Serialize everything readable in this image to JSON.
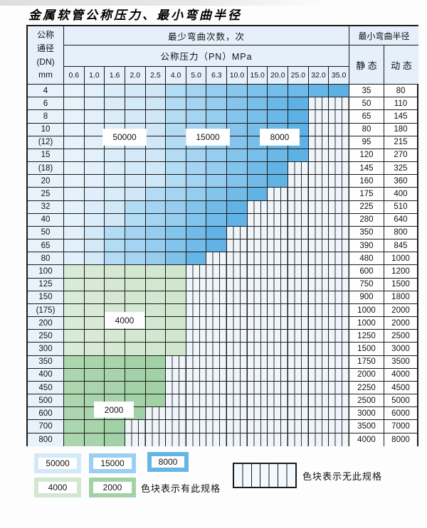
{
  "page": {
    "title": "金属软管公称压力、最小弯曲半径"
  },
  "table": {
    "corner": {
      "line1": "公称",
      "line2": "通径",
      "line3": "(DN)",
      "line4": "mm"
    },
    "bend_times_header": "最少弯曲次数，次",
    "pressure_header": "公称压力（PN）MPa",
    "radius_header": "最小弯曲半径",
    "static_header": "静 态",
    "dynamic_header": "动 态",
    "pressure_columns": [
      "0.6",
      "1.0",
      "1.6",
      "2.0",
      "2.5",
      "4.0",
      "5.0",
      "6.3",
      "10.0",
      "15.0",
      "20.0",
      "25.0",
      "32.0",
      "35.0"
    ],
    "rows": [
      {
        "dn": "4",
        "static": "35",
        "dynamic": "80",
        "segments": [
          {
            "cycles": "50000",
            "from": 0,
            "to": 4
          },
          {
            "cycles": "15000",
            "from": 5,
            "to": 7
          },
          {
            "cycles": "8000",
            "from": 8,
            "to": 13
          }
        ]
      },
      {
        "dn": "6",
        "static": "50",
        "dynamic": "110",
        "segments": [
          {
            "cycles": "50000",
            "from": 0,
            "to": 4
          },
          {
            "cycles": "15000",
            "from": 5,
            "to": 7
          },
          {
            "cycles": "8000",
            "from": 8,
            "to": 11
          }
        ]
      },
      {
        "dn": "8",
        "static": "65",
        "dynamic": "145",
        "segments": [
          {
            "cycles": "50000",
            "from": 0,
            "to": 4
          },
          {
            "cycles": "15000",
            "from": 5,
            "to": 7
          },
          {
            "cycles": "8000",
            "from": 8,
            "to": 11
          }
        ]
      },
      {
        "dn": "10",
        "static": "80",
        "dynamic": "180",
        "segments": [
          {
            "cycles": "50000",
            "from": 0,
            "to": 4
          },
          {
            "cycles": "15000",
            "from": 5,
            "to": 7
          },
          {
            "cycles": "8000",
            "from": 8,
            "to": 11
          }
        ]
      },
      {
        "dn": "(12)",
        "static": "95",
        "dynamic": "215",
        "segments": [
          {
            "cycles": "50000",
            "from": 0,
            "to": 4
          },
          {
            "cycles": "15000",
            "from": 5,
            "to": 7
          },
          {
            "cycles": "8000",
            "from": 8,
            "to": 11
          }
        ]
      },
      {
        "dn": "15",
        "static": "120",
        "dynamic": "270",
        "segments": [
          {
            "cycles": "50000",
            "from": 0,
            "to": 4
          },
          {
            "cycles": "15000",
            "from": 5,
            "to": 7
          },
          {
            "cycles": "8000",
            "from": 8,
            "to": 11
          }
        ]
      },
      {
        "dn": "(18)",
        "static": "145",
        "dynamic": "325",
        "segments": [
          {
            "cycles": "50000",
            "from": 0,
            "to": 4
          },
          {
            "cycles": "15000",
            "from": 5,
            "to": 7
          },
          {
            "cycles": "8000",
            "from": 8,
            "to": 10
          }
        ]
      },
      {
        "dn": "20",
        "static": "160",
        "dynamic": "360",
        "segments": [
          {
            "cycles": "50000",
            "from": 0,
            "to": 4
          },
          {
            "cycles": "15000",
            "from": 5,
            "to": 7
          },
          {
            "cycles": "8000",
            "from": 8,
            "to": 10
          }
        ]
      },
      {
        "dn": "25",
        "static": "175",
        "dynamic": "400",
        "segments": [
          {
            "cycles": "50000",
            "from": 0,
            "to": 3
          },
          {
            "cycles": "15000",
            "from": 4,
            "to": 6
          },
          {
            "cycles": "8000",
            "from": 7,
            "to": 9
          }
        ]
      },
      {
        "dn": "32",
        "static": "225",
        "dynamic": "510",
        "segments": [
          {
            "cycles": "50000",
            "from": 0,
            "to": 2
          },
          {
            "cycles": "15000",
            "from": 3,
            "to": 5
          },
          {
            "cycles": "8000",
            "from": 6,
            "to": 8
          }
        ]
      },
      {
        "dn": "40",
        "static": "280",
        "dynamic": "640",
        "segments": [
          {
            "cycles": "50000",
            "from": 0,
            "to": 2
          },
          {
            "cycles": "15000",
            "from": 3,
            "to": 5
          },
          {
            "cycles": "8000",
            "from": 6,
            "to": 8
          }
        ]
      },
      {
        "dn": "50",
        "static": "350",
        "dynamic": "800",
        "segments": [
          {
            "cycles": "50000",
            "from": 0,
            "to": 1
          },
          {
            "cycles": "15000",
            "from": 2,
            "to": 4
          },
          {
            "cycles": "8000",
            "from": 5,
            "to": 7
          }
        ]
      },
      {
        "dn": "65",
        "static": "390",
        "dynamic": "845",
        "segments": [
          {
            "cycles": "50000",
            "from": 0,
            "to": 1
          },
          {
            "cycles": "15000",
            "from": 2,
            "to": 4
          },
          {
            "cycles": "8000",
            "from": 5,
            "to": 7
          }
        ]
      },
      {
        "dn": "80",
        "static": "480",
        "dynamic": "1000",
        "segments": [
          {
            "cycles": "50000",
            "from": 0,
            "to": 1
          },
          {
            "cycles": "15000",
            "from": 2,
            "to": 4
          },
          {
            "cycles": "8000",
            "from": 5,
            "to": 6
          }
        ]
      },
      {
        "dn": "100",
        "static": "600",
        "dynamic": "1200",
        "segments": [
          {
            "cycles": "4000",
            "from": 0,
            "to": 5
          }
        ]
      },
      {
        "dn": "125",
        "static": "750",
        "dynamic": "1500",
        "segments": [
          {
            "cycles": "4000",
            "from": 0,
            "to": 5
          }
        ]
      },
      {
        "dn": "150",
        "static": "900",
        "dynamic": "1800",
        "segments": [
          {
            "cycles": "4000",
            "from": 0,
            "to": 5
          }
        ]
      },
      {
        "dn": "(175)",
        "static": "1000",
        "dynamic": "2000",
        "segments": [
          {
            "cycles": "4000",
            "from": 0,
            "to": 5
          }
        ]
      },
      {
        "dn": "200",
        "static": "1000",
        "dynamic": "2000",
        "segments": [
          {
            "cycles": "4000",
            "from": 0,
            "to": 5
          }
        ]
      },
      {
        "dn": "250",
        "static": "1250",
        "dynamic": "2500",
        "segments": [
          {
            "cycles": "4000",
            "from": 0,
            "to": 5
          }
        ]
      },
      {
        "dn": "300",
        "static": "1500",
        "dynamic": "3000",
        "segments": [
          {
            "cycles": "4000",
            "from": 0,
            "to": 5
          }
        ]
      },
      {
        "dn": "350",
        "static": "1750",
        "dynamic": "3500",
        "segments": [
          {
            "cycles": "2000",
            "from": 0,
            "to": 4
          }
        ]
      },
      {
        "dn": "400",
        "static": "2000",
        "dynamic": "4000",
        "segments": [
          {
            "cycles": "2000",
            "from": 0,
            "to": 4
          }
        ]
      },
      {
        "dn": "450",
        "static": "2250",
        "dynamic": "4500",
        "segments": [
          {
            "cycles": "2000",
            "from": 0,
            "to": 4
          }
        ]
      },
      {
        "dn": "500",
        "static": "2500",
        "dynamic": "5000",
        "segments": [
          {
            "cycles": "2000",
            "from": 0,
            "to": 4
          }
        ]
      },
      {
        "dn": "600",
        "static": "3000",
        "dynamic": "6000",
        "segments": [
          {
            "cycles": "2000",
            "from": 0,
            "to": 3
          }
        ]
      },
      {
        "dn": "700",
        "static": "3500",
        "dynamic": "7000",
        "segments": [
          {
            "cycles": "2000",
            "from": 0,
            "to": 2
          }
        ]
      },
      {
        "dn": "800",
        "static": "4000",
        "dynamic": "8000",
        "segments": [
          {
            "cycles": "2000",
            "from": 0,
            "to": 2
          }
        ]
      }
    ],
    "region_labels": [
      "50000",
      "15000",
      "8000",
      "4000",
      "2000"
    ]
  },
  "legend": {
    "items": [
      "50000",
      "15000",
      "8000",
      "4000",
      "2000"
    ],
    "has_spec_text": "色块表示有此规格",
    "no_spec_text": "色块表示无此规格"
  },
  "colors": {
    "grid": "#1a1a1a",
    "header_bg": "#e5f0fa",
    "dn_col_bg": "#e8f2fa",
    "hatch_bg": "#eff5fa",
    "hatch_line": "#333333",
    "bands": {
      "50000": [
        "#e9f4fc",
        "#cde5f6"
      ],
      "15000": [
        "#b9def5",
        "#8fcaee"
      ],
      "8000": [
        "#8bc8ee",
        "#58aee3"
      ],
      "4000": [
        "#d9ecd7",
        "#cfe5cc"
      ],
      "2000": [
        "#aed7b0",
        "#a0d0a4"
      ]
    }
  }
}
